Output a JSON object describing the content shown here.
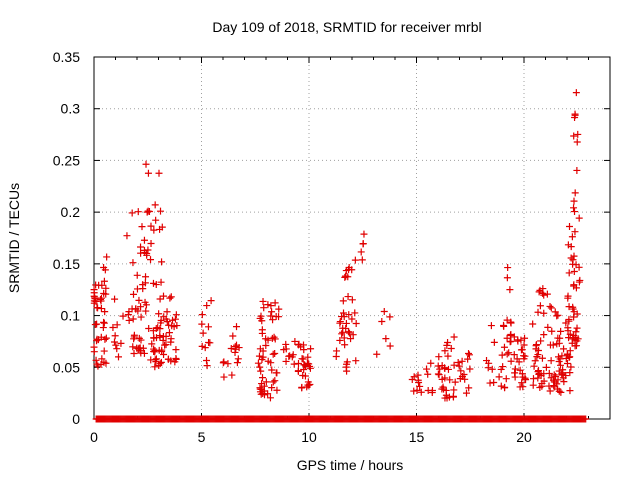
{
  "chart_data": {
    "type": "scatter",
    "title": "Day 109 of 2018, SRMTID for receiver mrbl",
    "xlabel": "GPS time / hours",
    "ylabel": "SRMTID / TECUs",
    "xlim": [
      0,
      24
    ],
    "ylim": [
      0,
      0.35
    ],
    "xticks": [
      0,
      5,
      10,
      15,
      20
    ],
    "xtick_labels": [
      "0",
      "5",
      "10",
      "15",
      "20"
    ],
    "yticks": [
      0,
      0.05,
      0.1,
      0.15,
      0.2,
      0.25,
      0.3,
      0.35
    ],
    "ytick_labels": [
      "0",
      "0.05",
      "0.1",
      "0.15",
      "0.2",
      "0.25",
      "0.3",
      "0.35"
    ],
    "grid": true,
    "marker": "plus",
    "color": "#e00000",
    "zero_band": [
      0.1,
      22.9
    ],
    "clusters": [
      {
        "x": [
          0,
          0.6
        ],
        "y": [
          0.05,
          0.13
        ],
        "n": 40
      },
      {
        "x": [
          0.4,
          0.6
        ],
        "y": [
          0.12,
          0.165
        ],
        "n": 6
      },
      {
        "x": [
          0.8,
          1.4
        ],
        "y": [
          0.06,
          0.12
        ],
        "n": 10
      },
      {
        "x": [
          1.5,
          1.8
        ],
        "y": [
          0.09,
          0.21
        ],
        "n": 6
      },
      {
        "x": [
          1.8,
          2.6
        ],
        "y": [
          0.06,
          0.16
        ],
        "n": 35
      },
      {
        "x": [
          2.0,
          2.6
        ],
        "y": [
          0.16,
          0.25
        ],
        "n": 14
      },
      {
        "x": [
          2.6,
          3.2
        ],
        "y": [
          0.05,
          0.2
        ],
        "n": 40
      },
      {
        "x": [
          2.8,
          3.1
        ],
        "y": [
          0.2,
          0.255
        ],
        "n": 3
      },
      {
        "x": [
          3.2,
          3.9
        ],
        "y": [
          0.055,
          0.12
        ],
        "n": 30
      },
      {
        "x": [
          5.0,
          5.5
        ],
        "y": [
          0.05,
          0.115
        ],
        "n": 12
      },
      {
        "x": [
          6.0,
          6.8
        ],
        "y": [
          0.04,
          0.105
        ],
        "n": 15
      },
      {
        "x": [
          7.6,
          8.6
        ],
        "y": [
          0.02,
          0.115
        ],
        "n": 55
      },
      {
        "x": [
          8.8,
          9.5
        ],
        "y": [
          0.05,
          0.08
        ],
        "n": 10
      },
      {
        "x": [
          9.5,
          10.1
        ],
        "y": [
          0.03,
          0.075
        ],
        "n": 30
      },
      {
        "x": [
          11.0,
          11.5
        ],
        "y": [
          0.05,
          0.15
        ],
        "n": 5
      },
      {
        "x": [
          11.5,
          12.2
        ],
        "y": [
          0.045,
          0.155
        ],
        "n": 35
      },
      {
        "x": [
          12.4,
          12.6
        ],
        "y": [
          0.12,
          0.185
        ],
        "n": 5
      },
      {
        "x": [
          13.0,
          13.8
        ],
        "y": [
          0.06,
          0.11
        ],
        "n": 6
      },
      {
        "x": [
          14.8,
          15.8
        ],
        "y": [
          0.025,
          0.055
        ],
        "n": 15
      },
      {
        "x": [
          16.0,
          16.8
        ],
        "y": [
          0.02,
          0.08
        ],
        "n": 30
      },
      {
        "x": [
          16.8,
          17.6
        ],
        "y": [
          0.025,
          0.065
        ],
        "n": 15
      },
      {
        "x": [
          18.2,
          19.4
        ],
        "y": [
          0.03,
          0.095
        ],
        "n": 25
      },
      {
        "x": [
          19.2,
          19.5
        ],
        "y": [
          0.06,
          0.148
        ],
        "n": 8
      },
      {
        "x": [
          19.5,
          20.2
        ],
        "y": [
          0.03,
          0.08
        ],
        "n": 25
      },
      {
        "x": [
          20.4,
          21.1
        ],
        "y": [
          0.03,
          0.13
        ],
        "n": 35
      },
      {
        "x": [
          21.1,
          22.2
        ],
        "y": [
          0.025,
          0.11
        ],
        "n": 60
      },
      {
        "x": [
          22.0,
          22.6
        ],
        "y": [
          0.07,
          0.2
        ],
        "n": 40
      },
      {
        "x": [
          22.3,
          22.6
        ],
        "y": [
          0.2,
          0.32
        ],
        "n": 12
      }
    ]
  }
}
